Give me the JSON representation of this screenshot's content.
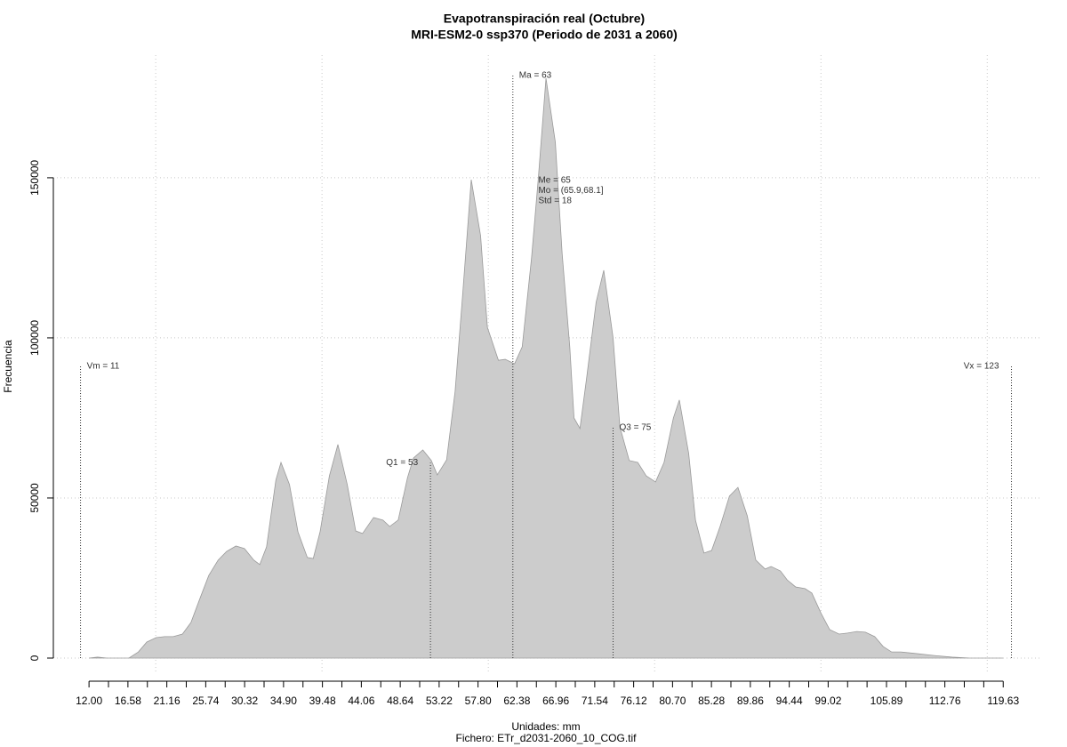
{
  "chart_data": {
    "type": "area",
    "title": "Evapotranspiración real (Octubre)",
    "subtitle": "MRI-ESM2-0 ssp370 (Periodo de 2031 a 2060)",
    "x_label": "Unidades: mm",
    "caption": "Fichero: ETr_d2031-2060_10_COG.tif",
    "y_label": "Frecuencia",
    "color": "#cccccc",
    "line_color": "#9a9a9a",
    "grid": true,
    "xlim": [
      7.8,
      124.0
    ],
    "ylim": [
      -5000,
      188300
    ],
    "yticks": [
      0,
      50000,
      100000,
      150000
    ],
    "xticks": [
      {
        "value": 12.0,
        "label": "12.00"
      },
      {
        "value": 16.58,
        "label": "16.58"
      },
      {
        "value": 21.16,
        "label": "21.16"
      },
      {
        "value": 25.74,
        "label": "25.74"
      },
      {
        "value": 30.32,
        "label": "30.32"
      },
      {
        "value": 34.9,
        "label": "34.90"
      },
      {
        "value": 39.48,
        "label": "39.48"
      },
      {
        "value": 44.06,
        "label": "44.06"
      },
      {
        "value": 48.64,
        "label": "48.64"
      },
      {
        "value": 53.22,
        "label": "53.22"
      },
      {
        "value": 57.8,
        "label": "57.80"
      },
      {
        "value": 62.38,
        "label": "62.38"
      },
      {
        "value": 66.96,
        "label": "66.96"
      },
      {
        "value": 71.54,
        "label": "71.54"
      },
      {
        "value": 76.12,
        "label": "76.12"
      },
      {
        "value": 80.7,
        "label": "80.70"
      },
      {
        "value": 85.28,
        "label": "85.28"
      },
      {
        "value": 89.86,
        "label": "89.86"
      },
      {
        "value": 94.44,
        "label": "94.44"
      },
      {
        "value": 99.02,
        "label": "99.02"
      },
      {
        "value": 105.89,
        "label": "105.89"
      },
      {
        "value": 112.76,
        "label": "112.76"
      },
      {
        "value": 119.63,
        "label": "119.63"
      }
    ],
    "x_minor_ticks": [
      14.29,
      18.87,
      23.45,
      28.03,
      32.61,
      37.19,
      41.77,
      46.35,
      50.93,
      55.51,
      60.09,
      64.67,
      69.25,
      73.83,
      78.41,
      82.99,
      87.57,
      92.15,
      96.73,
      101.31,
      103.6,
      108.18,
      110.47,
      115.05,
      117.34
    ],
    "x_grid": [
      19.85,
      39.43,
      59.01,
      78.59,
      98.17,
      117.75
    ],
    "x": [
      12.0,
      13.0,
      14.1,
      15.7,
      16.7,
      17.8,
      18.8,
      19.9,
      20.9,
      21.9,
      23.0,
      24.0,
      25.1,
      26.1,
      27.2,
      28.2,
      29.3,
      30.3,
      31.4,
      32.1,
      32.9,
      34.0,
      34.6,
      35.6,
      36.6,
      37.7,
      38.4,
      39.2,
      40.3,
      41.3,
      42.4,
      43.4,
      44.2,
      45.5,
      46.6,
      47.4,
      48.4,
      49.5,
      50.2,
      51.3,
      52.3,
      53.0,
      54.1,
      55.1,
      56.0,
      57.0,
      58.1,
      58.9,
      60.2,
      61.0,
      62.1,
      63.0,
      64.1,
      64.9,
      65.8,
      66.9,
      67.7,
      68.6,
      69.1,
      69.8,
      70.6,
      71.7,
      72.6,
      73.7,
      74.5,
      75.6,
      76.6,
      77.6,
      78.7,
      79.7,
      80.8,
      81.5,
      82.6,
      83.4,
      84.4,
      85.3,
      86.3,
      87.4,
      88.4,
      89.5,
      90.5,
      91.6,
      92.3,
      93.4,
      94.2,
      95.2,
      96.3,
      97.1,
      98.2,
      99.2,
      100.3,
      101.3,
      102.4,
      103.4,
      104.5,
      105.5,
      106.5,
      107.6,
      109.4,
      111.5,
      113.6,
      115.7,
      119.6
    ],
    "values": [
      0,
      300,
      0,
      0,
      0,
      1900,
      5000,
      6400,
      6700,
      6700,
      7500,
      11100,
      18900,
      25800,
      30600,
      33300,
      35000,
      34200,
      30600,
      29200,
      34700,
      55600,
      61100,
      54200,
      39400,
      31400,
      31100,
      39400,
      56900,
      66700,
      54200,
      39700,
      38900,
      43900,
      43100,
      41100,
      43100,
      56400,
      62500,
      65000,
      61700,
      57200,
      61900,
      83300,
      113900,
      149400,
      131900,
      103300,
      93000,
      93300,
      91900,
      97200,
      125000,
      150000,
      181100,
      161100,
      126400,
      97200,
      75000,
      71700,
      87800,
      111100,
      121100,
      100000,
      72200,
      61700,
      61100,
      56900,
      55000,
      61100,
      75000,
      80600,
      63900,
      43100,
      32800,
      33600,
      41100,
      50600,
      53300,
      44400,
      30600,
      27800,
      28600,
      27200,
      24400,
      22200,
      21700,
      20300,
      13900,
      8900,
      7500,
      7800,
      8300,
      8100,
      6700,
      3600,
      1900,
      1900,
      1400,
      800,
      300,
      0,
      0
    ],
    "annotations": [
      {
        "label": "Vm = 11",
        "x": 11.0,
        "y": 91100,
        "side": "right"
      },
      {
        "label": "Q1 = 53",
        "x": 52.2,
        "y": 61000,
        "side": "left"
      },
      {
        "label": "Ma = 63",
        "x": 61.9,
        "y": 181900,
        "side": "right"
      },
      {
        "label": "Q3 = 75",
        "x": 73.7,
        "y": 72000,
        "side": "right"
      },
      {
        "label": "Vx = 123",
        "x": 120.6,
        "y": 91100,
        "side": "left"
      }
    ],
    "stats": {
      "lines": [
        "Me = 65",
        "Mo = (65.9,68.1]",
        "Std = 18"
      ],
      "x": 64.9,
      "y": 149200
    }
  }
}
